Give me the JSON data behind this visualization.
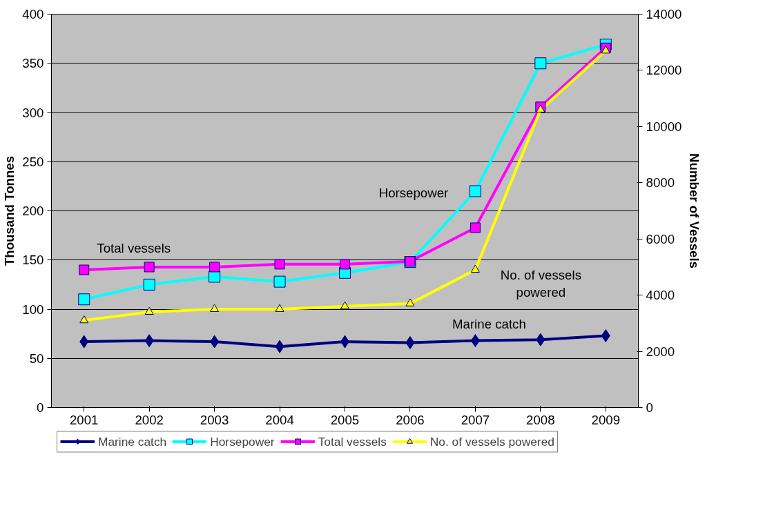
{
  "chart_data": {
    "type": "line",
    "ylabel": "Thousand Tonnes",
    "y2label": "Number of Vessels",
    "categories": [
      "2001",
      "2002",
      "2003",
      "2004",
      "2005",
      "2006",
      "2007",
      "2008",
      "2009"
    ],
    "series": [
      {
        "name": "Marine catch",
        "color": "#000080",
        "marker": "diamond",
        "values": [
          67,
          68,
          67,
          62,
          67,
          66,
          68,
          69,
          73
        ]
      },
      {
        "name": "Horsepower",
        "color": "#00ffff",
        "marker": "square",
        "values": [
          110,
          125,
          133,
          128,
          137,
          148,
          220,
          350,
          369
        ]
      },
      {
        "name": "Total vessels",
        "color": "#ff00ff",
        "marker": "square",
        "axis": "y2",
        "values": [
          4900,
          5000,
          5000,
          5100,
          5100,
          5200,
          6400,
          10700,
          12800
        ]
      },
      {
        "name": "No. of vessels powered",
        "color": "#ffff00",
        "marker": "triangle",
        "axis": "y2",
        "values": [
          3100,
          3400,
          3500,
          3500,
          3600,
          3700,
          4900,
          10600,
          12700
        ]
      }
    ],
    "ylim": [
      0,
      400
    ],
    "yticks": [
      0,
      50,
      100,
      150,
      200,
      250,
      300,
      350,
      400
    ],
    "y2lim": [
      0,
      14000
    ],
    "y2ticks": [
      0,
      2000,
      4000,
      6000,
      8000,
      10000,
      12000,
      14000
    ],
    "grid": "y",
    "legend": "bottom"
  }
}
